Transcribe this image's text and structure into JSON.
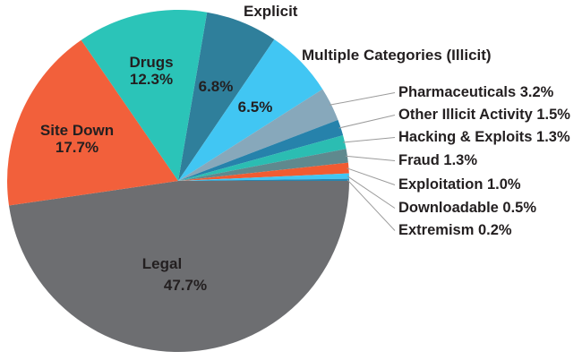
{
  "chart_data": {
    "type": "pie",
    "title": "",
    "unit": "%",
    "direction": "clockwise",
    "start_angle_deg": 9.72,
    "legend_position": "none",
    "slices": [
      {
        "label": "Explicit",
        "value": 6.8,
        "color": "#2F7F9B"
      },
      {
        "label": "Multiple Categories (Illicit)",
        "value": 6.5,
        "color": "#41C6F3"
      },
      {
        "label": "Pharmaceuticals",
        "value": 3.2,
        "color": "#87A8BB"
      },
      {
        "label": "Other Illicit Activity",
        "value": 1.5,
        "color": "#2682AB"
      },
      {
        "label": "Hacking & Exploits",
        "value": 1.3,
        "color": "#2BBDB2"
      },
      {
        "label": "Fraud",
        "value": 1.3,
        "color": "#5F898E"
      },
      {
        "label": "Exploitation",
        "value": 1.0,
        "color": "#F15B31"
      },
      {
        "label": "Downloadable",
        "value": 0.5,
        "color": "#41C6F3"
      },
      {
        "label": "Extremism",
        "value": 0.2,
        "color": "#2884AE"
      },
      {
        "label": "Legal",
        "value": 47.7,
        "color": "#6D6E71"
      },
      {
        "label": "Site Down",
        "value": 17.7,
        "color": "#F2603B"
      },
      {
        "label": "Drugs",
        "value": 12.3,
        "color": "#2BC4B8"
      }
    ]
  },
  "labels": {
    "explicit_title": "Explicit",
    "explicit_pct": "6.8%",
    "multiple_title": "Multiple Categories (Illicit)",
    "multiple_pct": "6.5%",
    "drugs_name": "Drugs",
    "drugs_pct": "12.3%",
    "site_down_name": "Site Down",
    "site_down_pct": "17.7%",
    "legal_name": "Legal",
    "legal_pct": "47.7%",
    "callouts": [
      "Pharmaceuticals 3.2%",
      "Other Illicit Activity 1.5%",
      "Hacking & Exploits 1.3%",
      "Fraud 1.3%",
      "Exploitation 1.0%",
      "Downloadable 0.5%",
      "Extremism 0.2%"
    ]
  },
  "styles": {
    "text_color": "#231F20",
    "leader_line_color": "#9B9B9B",
    "background": "#FFFFFF"
  }
}
